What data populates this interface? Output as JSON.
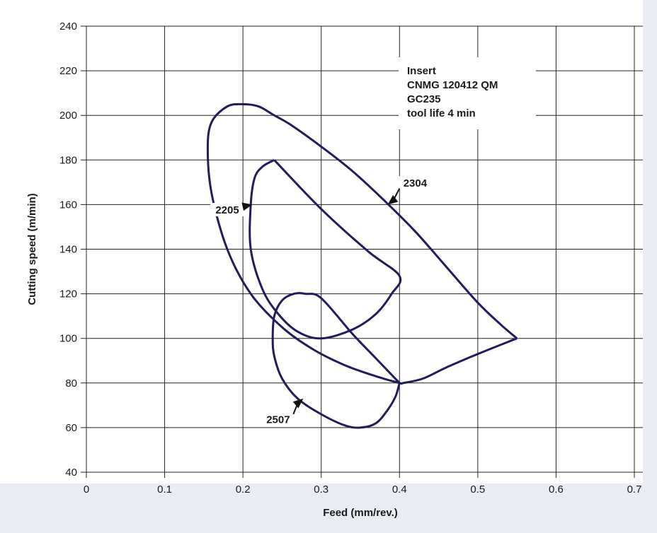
{
  "chart_data": {
    "type": "line",
    "xlabel": "Feed (mm/rev.)",
    "ylabel": "Cutting speed (m/min)",
    "xlim": [
      0,
      0.7
    ],
    "ylim": [
      40,
      240
    ],
    "x_ticks": [
      0,
      0.1,
      0.2,
      0.3,
      0.4,
      0.5,
      0.6,
      0.7
    ],
    "x_tick_labels": [
      "0",
      "0.1",
      "0.2",
      "0.3",
      "0.4",
      "0.5",
      "0.6",
      "0.7"
    ],
    "y_ticks": [
      40,
      60,
      80,
      100,
      120,
      140,
      160,
      180,
      200,
      220,
      240
    ],
    "y_tick_labels": [
      "40",
      "60",
      "80",
      "100",
      "120",
      "140",
      "160",
      "180",
      "200",
      "220",
      "240"
    ],
    "grid": true,
    "line_color": "#1f1d5e",
    "series": [
      {
        "name": "2304",
        "closed": true,
        "points": [
          [
            0.55,
            100
          ],
          [
            0.5,
            93
          ],
          [
            0.46,
            87
          ],
          [
            0.43,
            82
          ],
          [
            0.405,
            80
          ],
          [
            0.4,
            80
          ],
          [
            0.37,
            83
          ],
          [
            0.33,
            88
          ],
          [
            0.29,
            95
          ],
          [
            0.25,
            105
          ],
          [
            0.21,
            120
          ],
          [
            0.18,
            140
          ],
          [
            0.16,
            165
          ],
          [
            0.155,
            185
          ],
          [
            0.16,
            197
          ],
          [
            0.18,
            204
          ],
          [
            0.2,
            205
          ],
          [
            0.22,
            204
          ],
          [
            0.24,
            200
          ],
          [
            0.26,
            196
          ],
          [
            0.3,
            186
          ],
          [
            0.34,
            175
          ],
          [
            0.38,
            162
          ],
          [
            0.42,
            148
          ],
          [
            0.46,
            132
          ],
          [
            0.5,
            116
          ],
          [
            0.53,
            106
          ],
          [
            0.55,
            100
          ]
        ],
        "label": "2304",
        "label_anchor": [
          0.42,
          168
        ],
        "arrow_tip": [
          0.385,
          160
        ]
      },
      {
        "name": "2205",
        "closed": true,
        "points": [
          [
            0.24,
            180
          ],
          [
            0.3,
            158
          ],
          [
            0.36,
            139
          ],
          [
            0.4,
            128
          ],
          [
            0.39,
            120
          ],
          [
            0.37,
            111
          ],
          [
            0.34,
            104
          ],
          [
            0.3,
            100
          ],
          [
            0.27,
            103
          ],
          [
            0.245,
            111
          ],
          [
            0.225,
            122
          ],
          [
            0.21,
            140
          ],
          [
            0.21,
            160
          ],
          [
            0.215,
            172
          ],
          [
            0.225,
            177
          ],
          [
            0.24,
            180
          ]
        ],
        "label": "2205",
        "label_anchor": [
          0.18,
          156
        ],
        "arrow_tip": [
          0.212,
          160
        ]
      },
      {
        "name": "2507",
        "closed": true,
        "points": [
          [
            0.4,
            80
          ],
          [
            0.37,
            91
          ],
          [
            0.34,
            102
          ],
          [
            0.3,
            118
          ],
          [
            0.28,
            120
          ],
          [
            0.265,
            120
          ],
          [
            0.25,
            117
          ],
          [
            0.24,
            110
          ],
          [
            0.238,
            100
          ],
          [
            0.24,
            92
          ],
          [
            0.25,
            82
          ],
          [
            0.27,
            73
          ],
          [
            0.3,
            66
          ],
          [
            0.33,
            61
          ],
          [
            0.35,
            60
          ],
          [
            0.37,
            62
          ],
          [
            0.385,
            68
          ],
          [
            0.395,
            74
          ],
          [
            0.4,
            80
          ]
        ],
        "label": "2507",
        "label_anchor": [
          0.245,
          62
        ],
        "arrow_tip": [
          0.277,
          73
        ]
      }
    ],
    "annotation": {
      "lines": [
        "Insert",
        "CNMG 120412 QM",
        "GC235",
        "tool life 4 min"
      ]
    }
  }
}
